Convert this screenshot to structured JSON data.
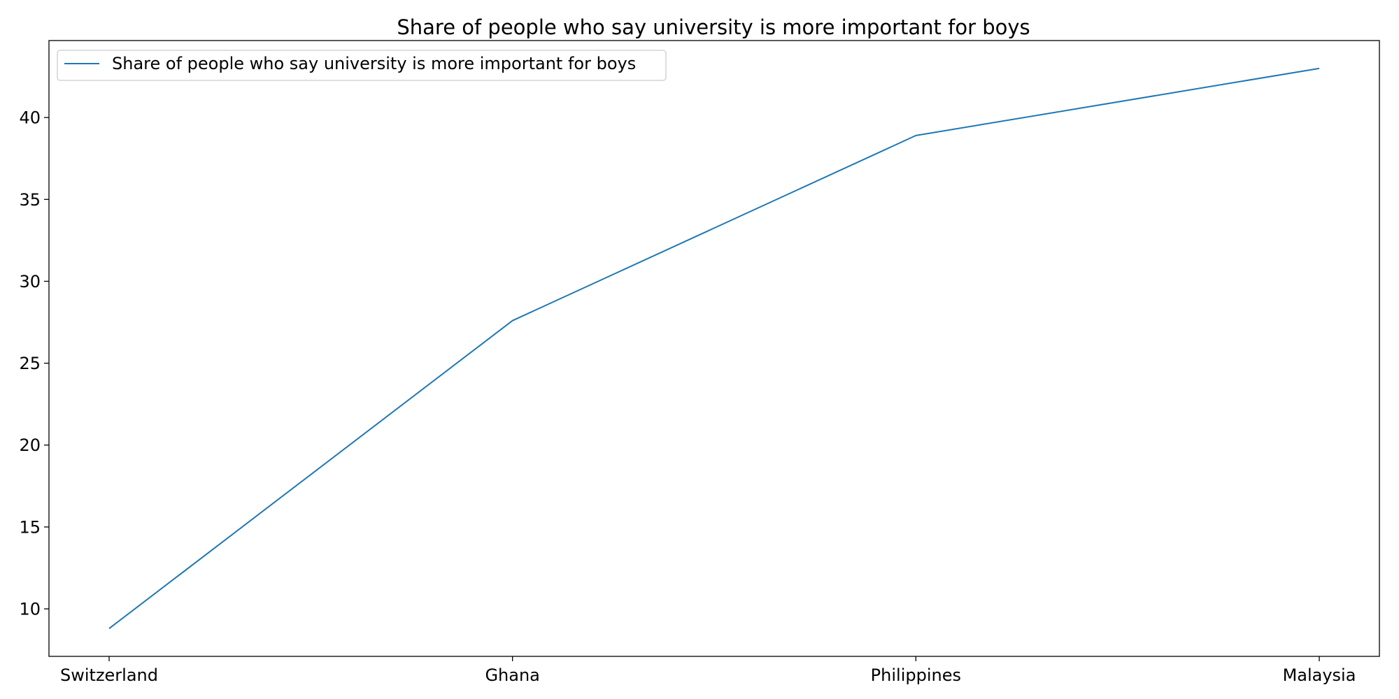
{
  "chart_data": {
    "type": "line",
    "title": "Share of people who say university is more important for boys",
    "xlabel": "",
    "ylabel": "",
    "categories": [
      "Switzerland",
      "Ghana",
      "Philippines",
      "Malaysia"
    ],
    "series": [
      {
        "name": "Share of people who say university is more important for boys",
        "values": [
          8.8,
          27.6,
          38.9,
          43.0
        ],
        "color": "#1f77b4"
      }
    ],
    "ylim": [
      7.1,
      44.7
    ],
    "yticks": [
      10,
      15,
      20,
      25,
      30,
      35,
      40
    ],
    "grid": false,
    "legend_position": "top-left"
  }
}
